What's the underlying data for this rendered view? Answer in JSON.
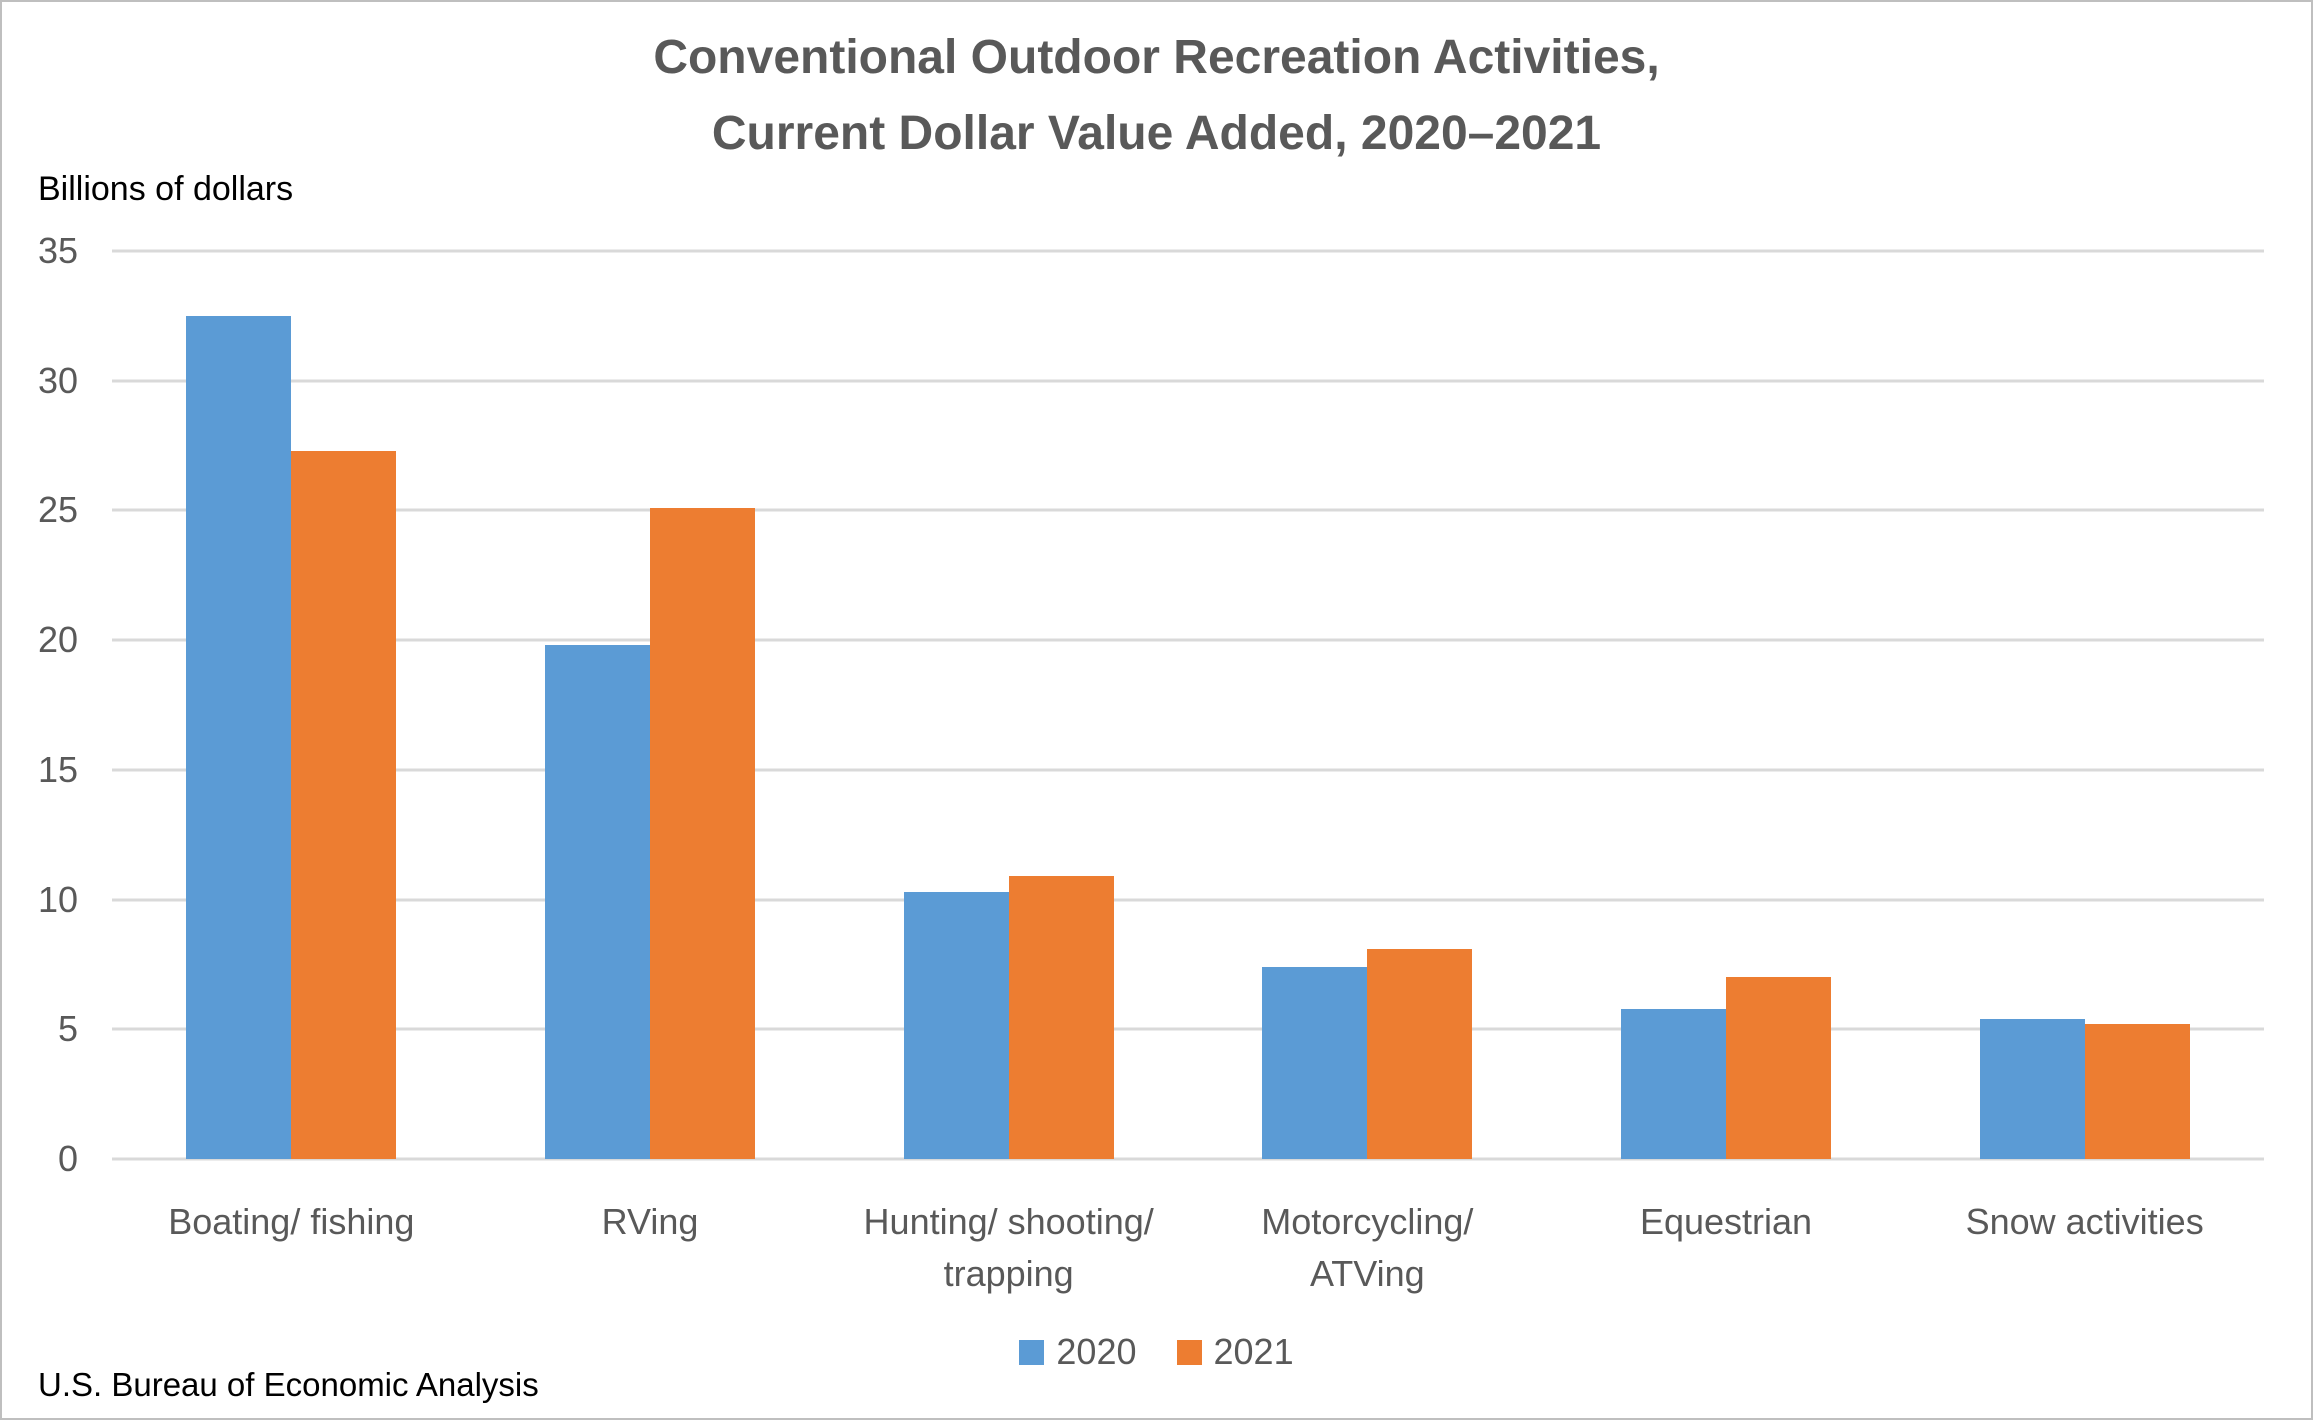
{
  "chart_data": {
    "type": "bar",
    "title_lines": [
      "Conventional Outdoor Recreation Activities,",
      "Current Dollar Value Added, 2020–2021"
    ],
    "ylabel": "Billions of dollars",
    "categories": [
      "Boating/ fishing",
      "RVing",
      "Hunting/ shooting/ trapping",
      "Motorcycling/ ATVing",
      "Equestrian",
      "Snow activities"
    ],
    "category_label_lines": [
      [
        "Boating/ fishing"
      ],
      [
        "RVing"
      ],
      [
        "Hunting/ shooting/",
        "trapping"
      ],
      [
        "Motorcycling/",
        "ATVing"
      ],
      [
        "Equestrian"
      ],
      [
        "Snow activities"
      ]
    ],
    "series": [
      {
        "name": "2020",
        "color": "#5B9BD5",
        "values": [
          32.5,
          19.8,
          10.3,
          7.4,
          5.8,
          5.4
        ]
      },
      {
        "name": "2021",
        "color": "#ED7D31",
        "values": [
          27.3,
          25.1,
          10.9,
          8.1,
          7.0,
          5.2
        ]
      }
    ],
    "y_axis": {
      "min": 0,
      "max": 35,
      "tick_step": 5,
      "ticks": [
        35,
        30,
        25,
        20,
        15,
        10,
        5,
        0
      ]
    },
    "grid": true,
    "legend_position": "bottom",
    "source": "U.S. Bureau of Economic Analysis",
    "colors": {
      "gridline": "#D9D9D9",
      "axis_text": "#595959",
      "title_text": "#595959"
    }
  }
}
